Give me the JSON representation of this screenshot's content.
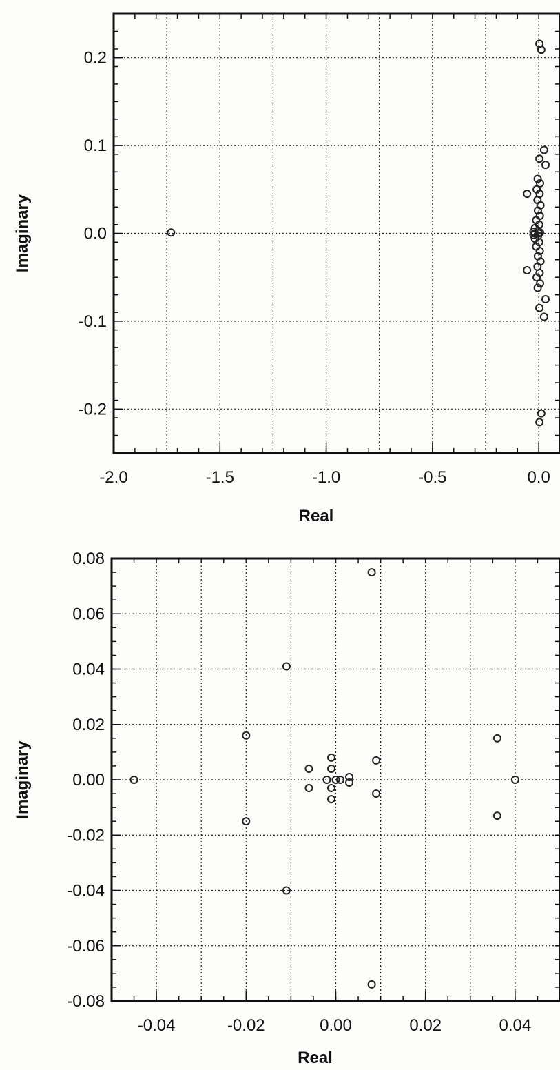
{
  "chart_data": [
    {
      "type": "scatter",
      "title": "",
      "xlabel": "Real",
      "ylabel": "Imaginary",
      "xlim": [
        -2.0,
        0.1
      ],
      "ylim": [
        -0.25,
        0.25
      ],
      "x_ticks": [
        "-2.0",
        "-1.5",
        "-1.0",
        "-0.5",
        "0.0"
      ],
      "y_ticks": [
        "0.2",
        "0.1",
        "0.0",
        "-0.1",
        "-0.2"
      ],
      "grid": true,
      "marker": "open-circle",
      "series": [
        {
          "points": [
            [
              -1.73,
              0.001
            ],
            [
              0.003,
              0.216
            ],
            [
              0.012,
              0.209
            ],
            [
              0.003,
              -0.215
            ],
            [
              0.012,
              -0.205
            ],
            [
              0.025,
              0.095
            ],
            [
              0.003,
              0.085
            ],
            [
              0.032,
              0.078
            ],
            [
              0.025,
              -0.095
            ],
            [
              0.003,
              -0.085
            ],
            [
              0.032,
              -0.075
            ],
            [
              -0.055,
              0.045
            ],
            [
              -0.055,
              -0.042
            ],
            [
              -0.005,
              0.062
            ],
            [
              0.006,
              0.057
            ],
            [
              -0.01,
              0.05
            ],
            [
              0.004,
              0.045
            ],
            [
              -0.006,
              0.038
            ],
            [
              0.008,
              0.032
            ],
            [
              -0.004,
              0.026
            ],
            [
              0.005,
              0.02
            ],
            [
              -0.012,
              0.015
            ],
            [
              0.002,
              0.01
            ],
            [
              -0.018,
              0.006
            ],
            [
              -0.003,
              0.003
            ],
            [
              0.006,
              0.001
            ],
            [
              -0.005,
              -0.062
            ],
            [
              0.006,
              -0.057
            ],
            [
              -0.01,
              -0.05
            ],
            [
              0.004,
              -0.045
            ],
            [
              -0.006,
              -0.038
            ],
            [
              0.008,
              -0.032
            ],
            [
              -0.004,
              -0.026
            ],
            [
              0.005,
              -0.02
            ],
            [
              -0.012,
              -0.015
            ],
            [
              0.002,
              -0.01
            ],
            [
              -0.018,
              -0.006
            ],
            [
              -0.003,
              -0.003
            ],
            [
              -0.02,
              0.0
            ],
            [
              0.0,
              0.0
            ],
            [
              -0.025,
              0.002
            ],
            [
              -0.025,
              -0.002
            ]
          ]
        }
      ]
    },
    {
      "type": "scatter",
      "title": "",
      "xlabel": "Real",
      "ylabel": "Imaginary",
      "xlim": [
        -0.05,
        0.05
      ],
      "ylim": [
        -0.08,
        0.08
      ],
      "x_ticks": [
        "-0.04",
        "-0.02",
        "0.00",
        "0.02",
        "0.04"
      ],
      "y_ticks": [
        "0.08",
        "0.06",
        "0.04",
        "0.02",
        "0.00",
        "-0.02",
        "-0.04",
        "-0.06",
        "-0.08"
      ],
      "grid": true,
      "marker": "open-circle",
      "series": [
        {
          "points": [
            [
              -0.045,
              0.0
            ],
            [
              -0.02,
              0.016
            ],
            [
              -0.02,
              -0.015
            ],
            [
              -0.011,
              0.041
            ],
            [
              -0.011,
              -0.04
            ],
            [
              0.008,
              0.075
            ],
            [
              0.008,
              -0.074
            ],
            [
              -0.006,
              0.004
            ],
            [
              -0.006,
              -0.003
            ],
            [
              -0.001,
              0.008
            ],
            [
              -0.001,
              0.004
            ],
            [
              -0.001,
              -0.003
            ],
            [
              -0.001,
              -0.007
            ],
            [
              -0.002,
              0.0
            ],
            [
              0.0,
              0.0
            ],
            [
              0.001,
              0.0
            ],
            [
              0.003,
              0.001
            ],
            [
              0.003,
              -0.001
            ],
            [
              0.009,
              0.007
            ],
            [
              0.009,
              -0.005
            ],
            [
              0.036,
              0.015
            ],
            [
              0.036,
              -0.013
            ],
            [
              0.04,
              0.0
            ]
          ]
        }
      ]
    }
  ]
}
